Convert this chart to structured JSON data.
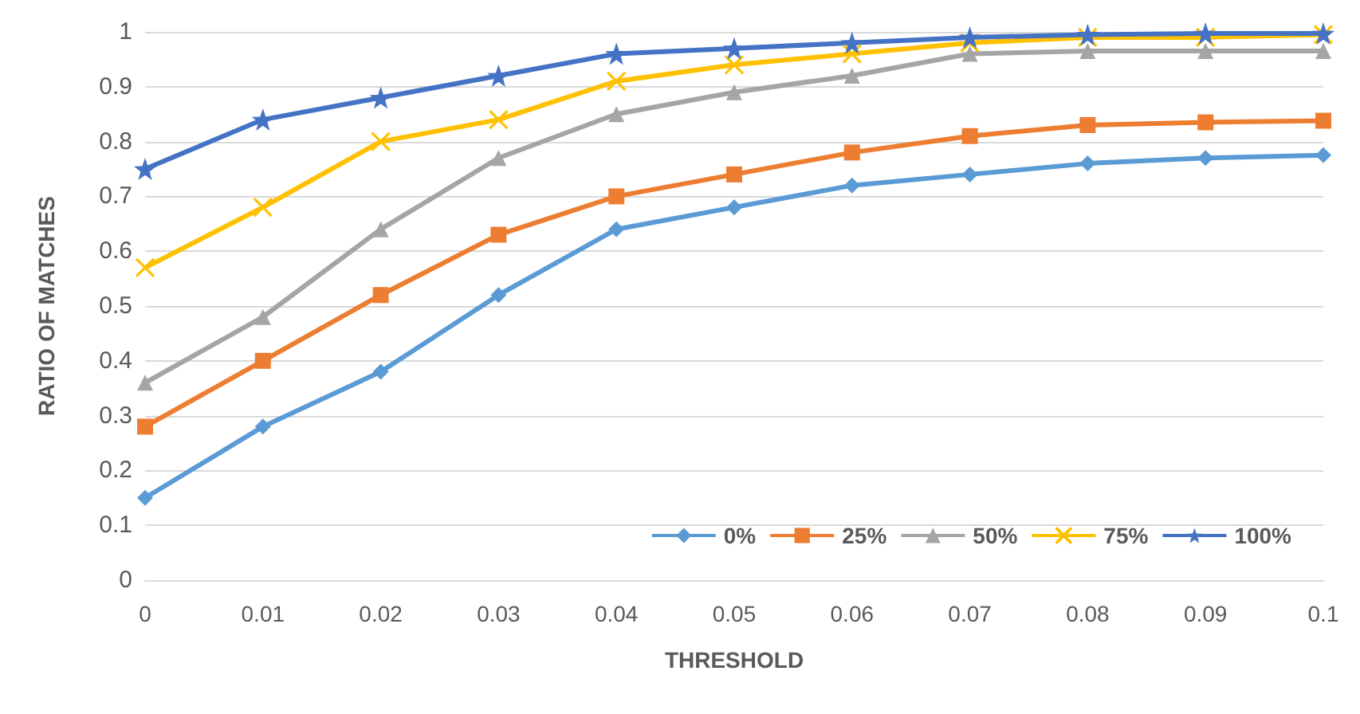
{
  "chart_data": {
    "type": "line",
    "xlabel": "THRESHOLD",
    "ylabel": "RATIO OF MATCHES",
    "categories": [
      "0",
      "0.01",
      "0.02",
      "0.03",
      "0.04",
      "0.05",
      "0.06",
      "0.07",
      "0.08",
      "0.09",
      "0.1"
    ],
    "ylim": [
      0,
      1
    ],
    "yticks": [
      0,
      0.1,
      0.2,
      0.3,
      0.4,
      0.5,
      0.6,
      0.7,
      0.8,
      0.9,
      1
    ],
    "grid": "y",
    "legend": "bottom right",
    "series": [
      {
        "name": "0%",
        "color": "#5b9bd5",
        "marker": "diamond",
        "values": [
          0.15,
          0.28,
          0.38,
          0.52,
          0.64,
          0.68,
          0.72,
          0.74,
          0.76,
          0.77,
          0.775
        ]
      },
      {
        "name": "25%",
        "color": "#ed7d31",
        "marker": "square",
        "values": [
          0.28,
          0.4,
          0.52,
          0.63,
          0.7,
          0.74,
          0.78,
          0.81,
          0.83,
          0.835,
          0.838
        ]
      },
      {
        "name": "50%",
        "color": "#a5a5a5",
        "marker": "triangle",
        "values": [
          0.36,
          0.48,
          0.64,
          0.77,
          0.85,
          0.89,
          0.92,
          0.96,
          0.965,
          0.965,
          0.965
        ]
      },
      {
        "name": "75%",
        "color": "#ffc000",
        "marker": "cross",
        "values": [
          0.57,
          0.68,
          0.8,
          0.84,
          0.91,
          0.94,
          0.96,
          0.98,
          0.99,
          0.99,
          0.995
        ]
      },
      {
        "name": "100%",
        "color": "#4472c4",
        "marker": "star",
        "values": [
          0.75,
          0.84,
          0.88,
          0.92,
          0.96,
          0.97,
          0.98,
          0.99,
          0.995,
          0.997,
          0.997
        ]
      }
    ]
  }
}
